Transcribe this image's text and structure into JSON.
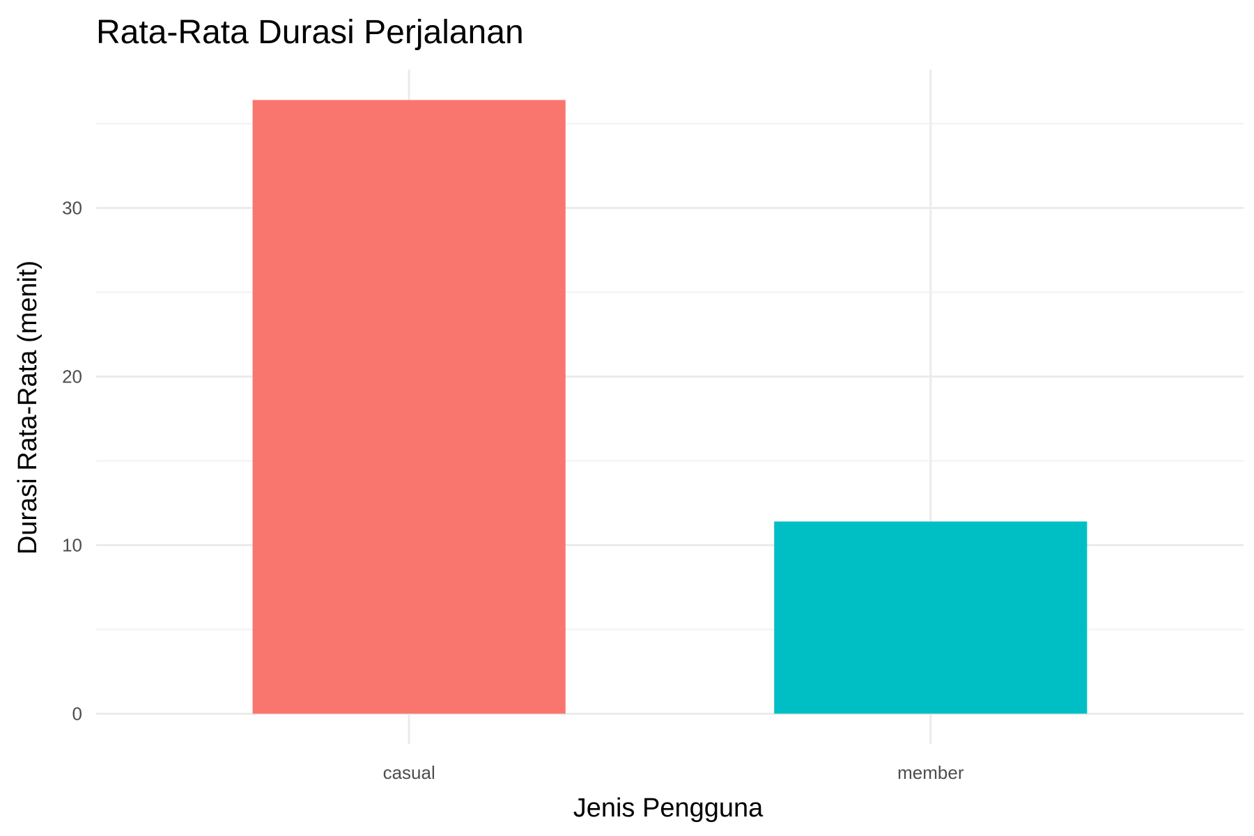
{
  "chart_data": {
    "type": "bar",
    "title": "Rata-Rata Durasi Perjalanan",
    "xlabel": "Jenis Pengguna",
    "ylabel": "Durasi Rata-Rata (menit)",
    "categories": [
      "casual",
      "member"
    ],
    "values": [
      36.4,
      11.4
    ],
    "colors": [
      "#F8766D",
      "#00BFC4"
    ],
    "ylim": [
      -1.8,
      38.2
    ],
    "yticks": [
      0,
      10,
      20,
      30
    ],
    "yminor": [
      5,
      15,
      25,
      35
    ],
    "grid": true,
    "legend": "none"
  }
}
